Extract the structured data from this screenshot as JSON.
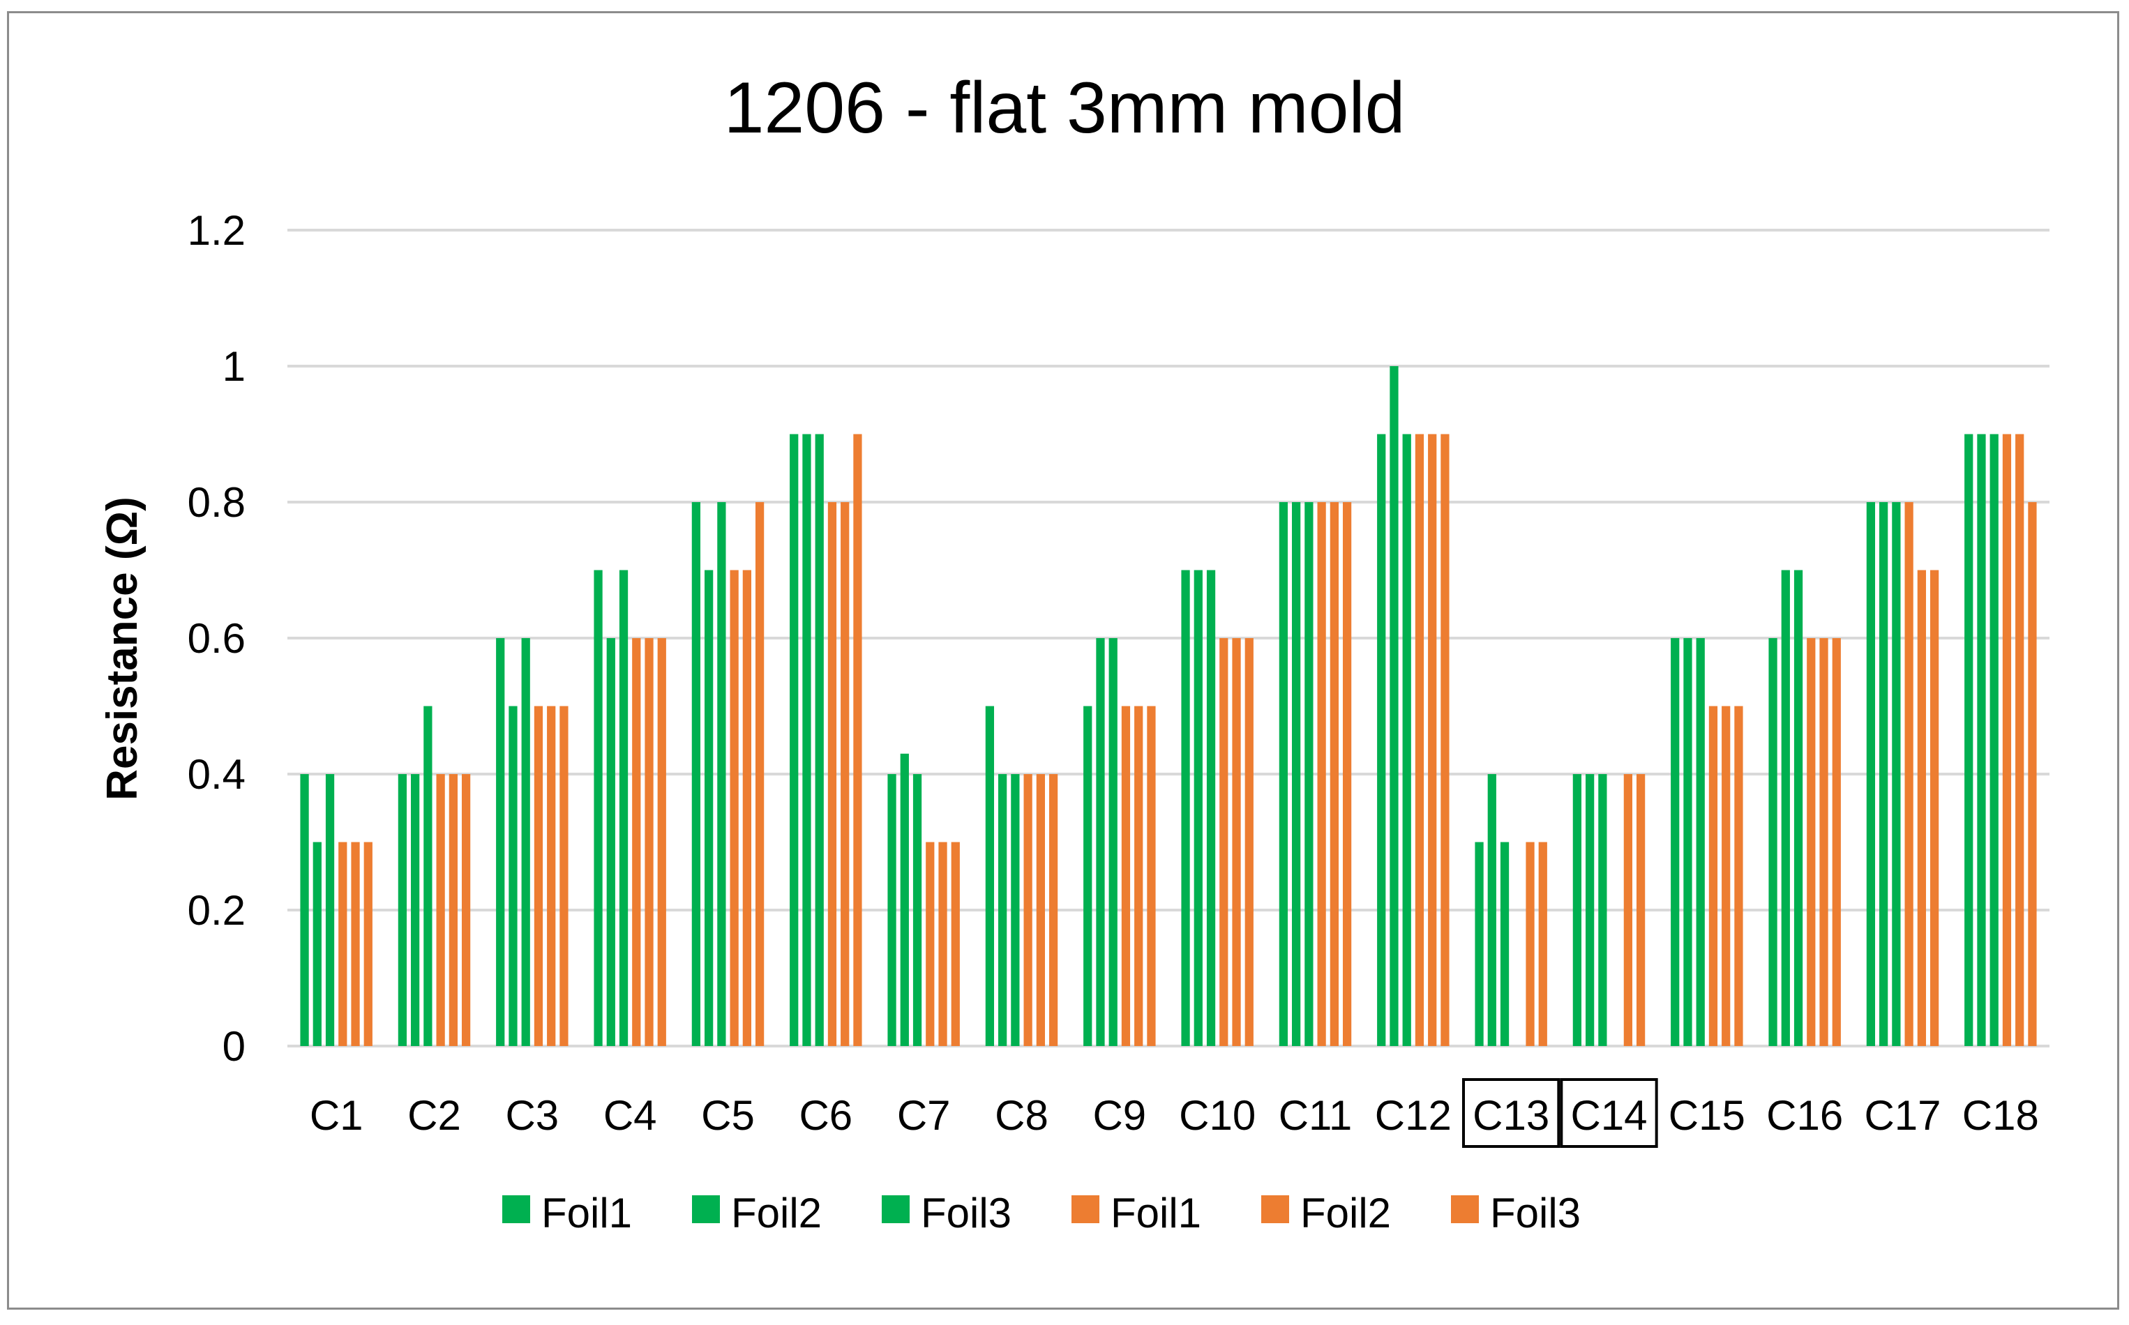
{
  "chart_data": {
    "type": "bar",
    "title": "1206 - flat 3mm mold",
    "xlabel": "",
    "ylabel": "Resistance (Ω)",
    "ylim": [
      0,
      1.2
    ],
    "yticks": [
      "0",
      "0.2",
      "0.4",
      "0.6",
      "0.8",
      "1",
      "1.2"
    ],
    "grid": true,
    "legend_position": "bottom",
    "categories": [
      "C1",
      "C2",
      "C3",
      "C4",
      "C5",
      "C6",
      "C7",
      "C8",
      "C9",
      "C10",
      "C11",
      "C12",
      "C13",
      "C14",
      "C15",
      "C16",
      "C17",
      "C18"
    ],
    "boxed_categories": [
      "C13",
      "C14"
    ],
    "series": [
      {
        "name": "Foil1",
        "color": "#00b050",
        "values": [
          0.4,
          0.4,
          0.6,
          0.7,
          0.8,
          0.9,
          0.4,
          0.5,
          0.5,
          0.7,
          0.8,
          0.9,
          0.3,
          0.4,
          0.6,
          0.6,
          0.8,
          0.9
        ]
      },
      {
        "name": "Foil2",
        "color": "#00b050",
        "values": [
          0.3,
          0.4,
          0.5,
          0.6,
          0.7,
          0.9,
          0.43,
          0.4,
          0.6,
          0.7,
          0.8,
          1.0,
          0.4,
          0.4,
          0.6,
          0.7,
          0.8,
          0.9
        ]
      },
      {
        "name": "Foil3",
        "color": "#00b050",
        "values": [
          0.4,
          0.5,
          0.6,
          0.7,
          0.8,
          0.9,
          0.4,
          0.4,
          0.6,
          0.7,
          0.8,
          0.9,
          0.3,
          0.4,
          0.6,
          0.7,
          0.8,
          0.9
        ]
      },
      {
        "name": "Foil1",
        "color": "#ed7d31",
        "values": [
          0.3,
          0.4,
          0.5,
          0.6,
          0.7,
          0.8,
          0.3,
          0.4,
          0.5,
          0.6,
          0.8,
          0.9,
          0,
          0,
          0.5,
          0.6,
          0.8,
          0.9
        ]
      },
      {
        "name": "Foil2",
        "color": "#ed7d31",
        "values": [
          0.3,
          0.4,
          0.5,
          0.6,
          0.7,
          0.8,
          0.3,
          0.4,
          0.5,
          0.6,
          0.8,
          0.9,
          0.3,
          0.4,
          0.5,
          0.6,
          0.7,
          0.9
        ]
      },
      {
        "name": "Foil3",
        "color": "#ed7d31",
        "values": [
          0.3,
          0.4,
          0.5,
          0.6,
          0.8,
          0.9,
          0.3,
          0.4,
          0.5,
          0.6,
          0.8,
          0.9,
          0.3,
          0.4,
          0.5,
          0.6,
          0.7,
          0.8
        ]
      }
    ]
  }
}
